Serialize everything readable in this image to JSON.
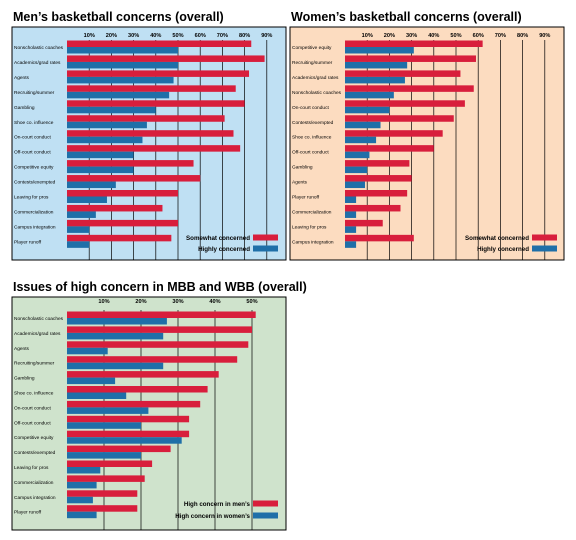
{
  "colors": {
    "red": "#d81e3c",
    "blue": "#1f6fa8",
    "bg_men": "#bfe0f3",
    "bg_women": "#fcdcc0",
    "bg_high": "#cfe3cc",
    "gridline": "#000000"
  },
  "chart_data": [
    {
      "id": "men",
      "type": "bar",
      "orientation": "horizontal",
      "title": "Men’s basketball concerns (overall)",
      "categories": [
        "Nonscholastic coaches",
        "Academics/grad rates",
        "Agents",
        "Recruiting/summer",
        "Gambling",
        "Shoe co. influence",
        "On-court conduct",
        "Off-court conduct",
        "Competitive equity",
        "Contests/exempted",
        "Leaving for pros",
        "Commercialization",
        "Campus integration",
        "Player runoff"
      ],
      "xlim": [
        0,
        100
      ],
      "ticks": [
        10,
        20,
        30,
        40,
        50,
        60,
        70,
        80,
        90
      ],
      "tick_labels": [
        "10%",
        "20%",
        "30%",
        "40%",
        "50%",
        "60%",
        "70%",
        "80%",
        "90%"
      ],
      "grid": true,
      "legend_position": "bottom-right",
      "series": [
        {
          "name": "Somewhat concerned",
          "color": "red",
          "values": [
            83,
            89,
            82,
            76,
            80,
            71,
            75,
            78,
            57,
            60,
            50,
            43,
            50,
            47
          ]
        },
        {
          "name": "Highly concerned",
          "color": "blue",
          "values": [
            50,
            50,
            48,
            46,
            40,
            36,
            34,
            30,
            30,
            22,
            18,
            13,
            10,
            10
          ]
        }
      ]
    },
    {
      "id": "women",
      "type": "bar",
      "orientation": "horizontal",
      "title": "Women’s basketball concerns (overall)",
      "categories": [
        "Competitive equity",
        "Recruiting/summer",
        "Academics/grad rates",
        "Nonscholastic coaches",
        "On-court conduct",
        "Contests/exempted",
        "Shoe co. influence",
        "Off-court conduct",
        "Gambling",
        "Agents",
        "Player runoff",
        "Commercialization",
        "Leaving for pros",
        "Campus integration"
      ],
      "xlim": [
        0,
        100
      ],
      "ticks": [
        10,
        20,
        30,
        40,
        50,
        60,
        70,
        80,
        90
      ],
      "tick_labels": [
        "10%",
        "20%",
        "30%",
        "40%",
        "50%",
        "60%",
        "70%",
        "80%",
        "90%"
      ],
      "grid": true,
      "legend_position": "bottom-right",
      "series": [
        {
          "name": "Somewhat concerned",
          "color": "red",
          "values": [
            62,
            59,
            52,
            58,
            54,
            49,
            44,
            40,
            29,
            30,
            28,
            25,
            17,
            31
          ]
        },
        {
          "name": "Highly concerned",
          "color": "blue",
          "values": [
            31,
            28,
            27,
            22,
            20,
            16,
            14,
            11,
            10,
            9,
            5,
            5,
            5,
            5
          ]
        }
      ]
    },
    {
      "id": "high",
      "type": "bar",
      "orientation": "horizontal",
      "title": "Issues of high concern in MBB and WBB (overall)",
      "categories": [
        "Nonscholastic coaches",
        "Academics/grad rates",
        "Agents",
        "Recruiting/summer",
        "Gambling",
        "Shoe co. influence",
        "On-court conduct",
        "Off-court conduct",
        "Competitive equity",
        "Contests/exempted",
        "Leaving for pros",
        "Commercialization",
        "Campus integration",
        "Player runoff"
      ],
      "xlim": [
        0,
        55
      ],
      "ticks": [
        10,
        20,
        30,
        40,
        50
      ],
      "tick_labels": [
        "10%",
        "20%",
        "30%",
        "40%",
        "50%"
      ],
      "grid": true,
      "legend_position": "bottom-right",
      "series": [
        {
          "name": "High concern in men’s",
          "color": "red",
          "values": [
            51,
            50,
            49,
            46,
            41,
            38,
            36,
            33,
            33,
            28,
            23,
            21,
            19,
            19
          ]
        },
        {
          "name": "High concern in women’s",
          "color": "blue",
          "values": [
            27,
            26,
            11,
            26,
            13,
            16,
            22,
            20,
            31,
            20,
            9,
            8,
            7,
            8
          ]
        }
      ]
    }
  ]
}
